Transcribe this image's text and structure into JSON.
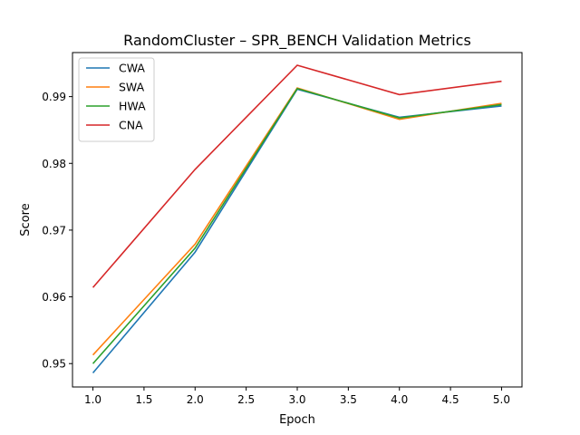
{
  "chart_data": {
    "type": "line",
    "title": "RandomCluster – SPR_BENCH Validation Metrics",
    "xlabel": "Epoch",
    "ylabel": "Score",
    "x": [
      1.0,
      2.0,
      3.0,
      4.0,
      5.0
    ],
    "xlim": [
      0.8,
      5.2
    ],
    "ylim": [
      0.9465,
      0.9966
    ],
    "xticks": [
      1.0,
      1.5,
      2.0,
      2.5,
      3.0,
      3.5,
      4.0,
      4.5,
      5.0
    ],
    "xtick_labels": [
      "1.0",
      "1.5",
      "2.0",
      "2.5",
      "3.0",
      "3.5",
      "4.0",
      "4.5",
      "5.0"
    ],
    "yticks": [
      0.95,
      0.96,
      0.97,
      0.98,
      0.99
    ],
    "ytick_labels": [
      "0.95",
      "0.96",
      "0.97",
      "0.98",
      "0.99"
    ],
    "grid": false,
    "legend_position": "upper-left",
    "series": [
      {
        "name": "CWA",
        "color": "#1f77b4",
        "values": [
          0.9486,
          0.9667,
          0.9911,
          0.9869,
          0.9886
        ]
      },
      {
        "name": "SWA",
        "color": "#ff7f0e",
        "values": [
          0.9513,
          0.9679,
          0.9913,
          0.9866,
          0.989
        ]
      },
      {
        "name": "HWA",
        "color": "#2ca02c",
        "values": [
          0.95,
          0.9673,
          0.9912,
          0.9868,
          0.9888
        ]
      },
      {
        "name": "CNA",
        "color": "#d62728",
        "values": [
          0.9614,
          0.9791,
          0.9947,
          0.9903,
          0.9923
        ]
      }
    ]
  }
}
